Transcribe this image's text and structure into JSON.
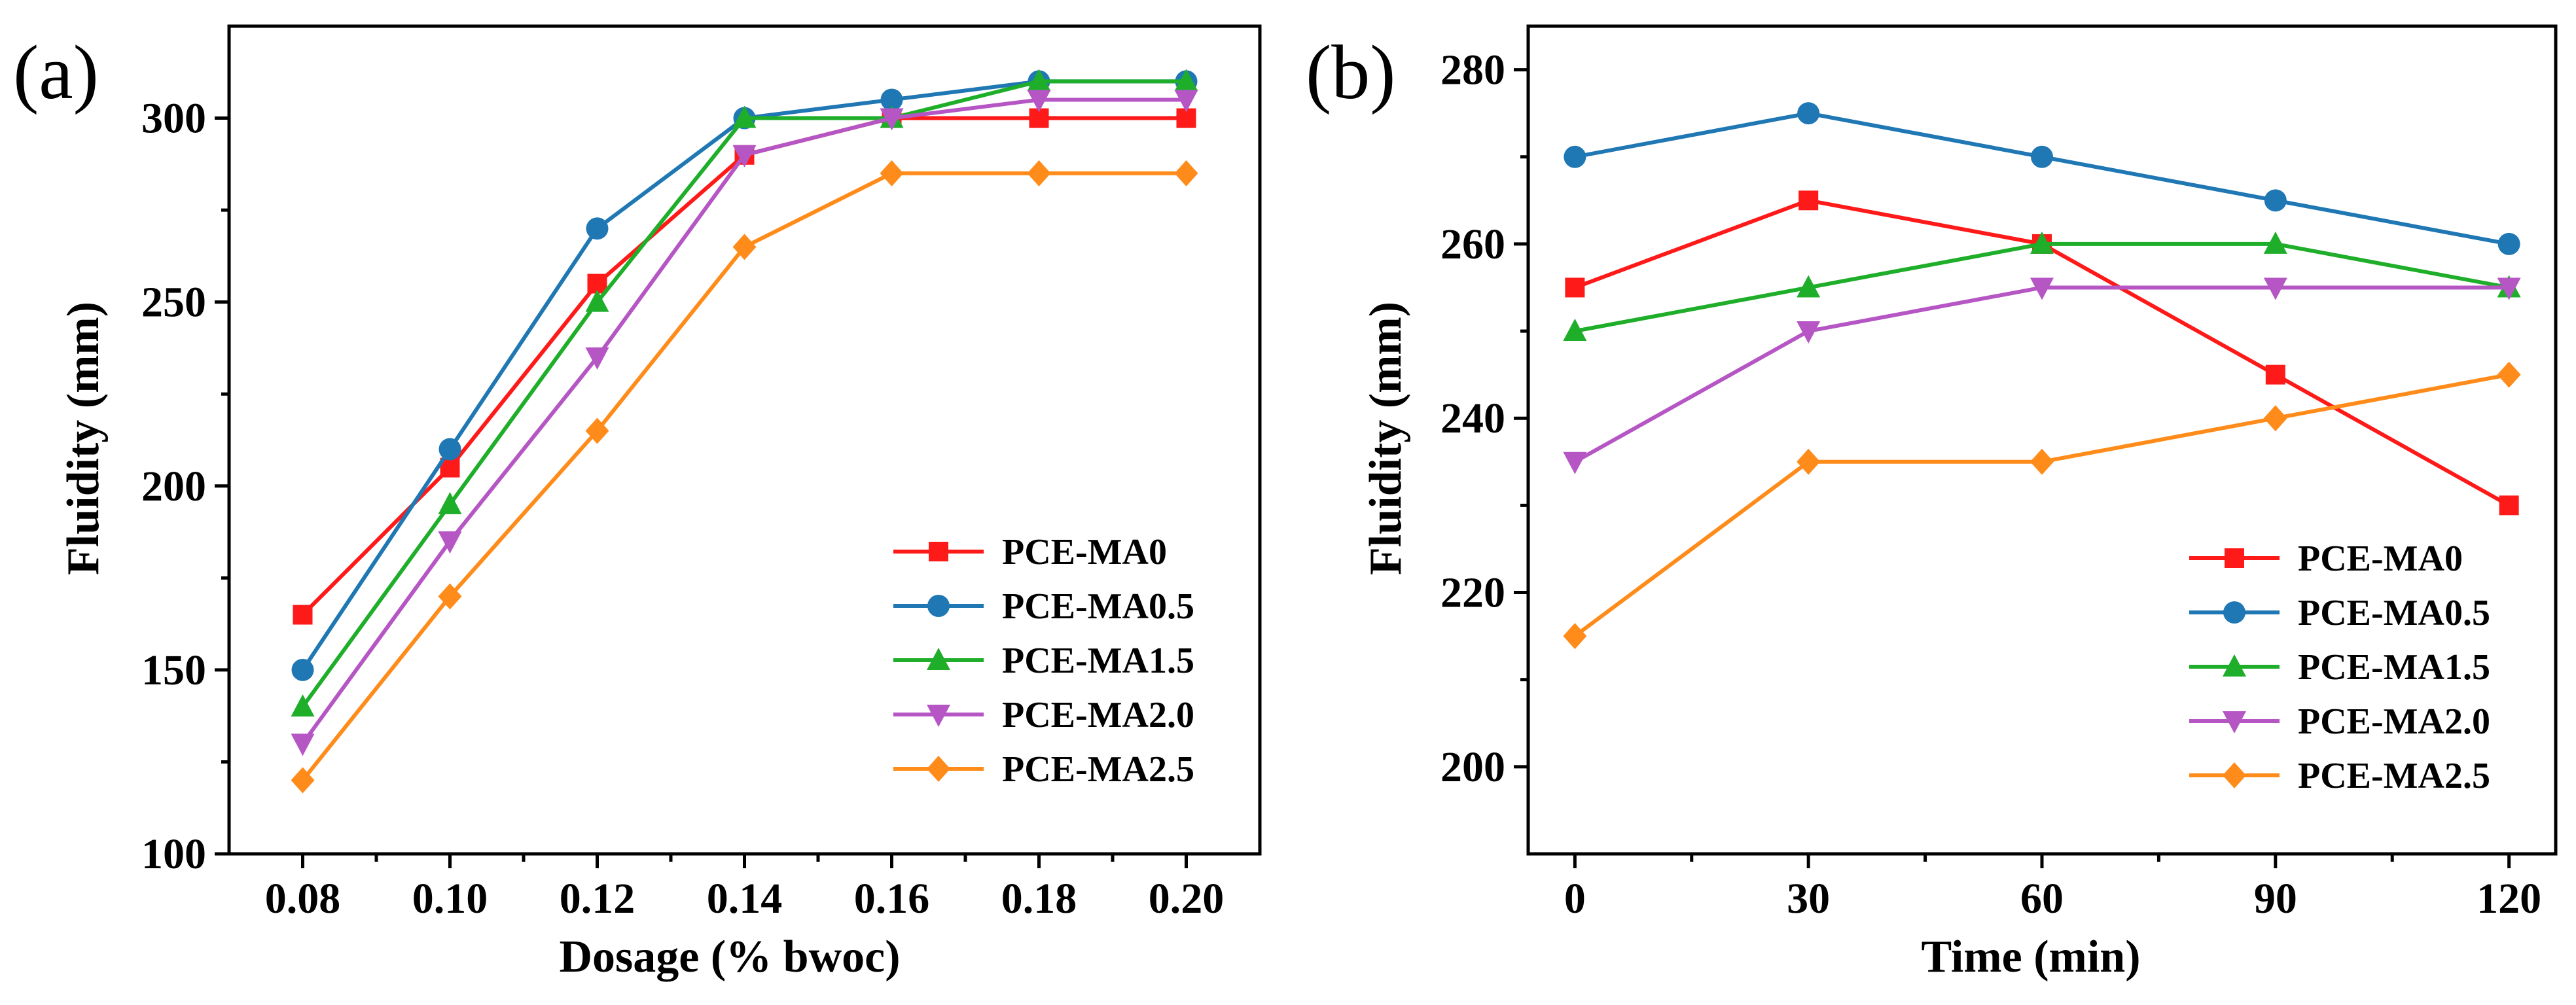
{
  "chart_data": [
    {
      "type": "line",
      "panel_label": "(a)",
      "xlabel": "Dosage (% bwoc)",
      "ylabel": "Fluidity (mm)",
      "x": [
        0.08,
        0.1,
        0.12,
        0.14,
        0.16,
        0.18,
        0.2
      ],
      "x_tick_labels": [
        "0.08",
        "0.10",
        "0.12",
        "0.14",
        "0.16",
        "0.18",
        "0.20"
      ],
      "xlim": [
        0.07,
        0.21
      ],
      "ylim": [
        100,
        325
      ],
      "y_ticks": [
        100,
        150,
        200,
        250,
        300
      ],
      "y_tick_labels": [
        "100",
        "150",
        "200",
        "250",
        "300"
      ],
      "legend_position": "bottom-right",
      "series": [
        {
          "name": "PCE-MA0",
          "color": "#ff1a1a",
          "marker": "square",
          "values": [
            165,
            205,
            255,
            290,
            300,
            300,
            300
          ]
        },
        {
          "name": "PCE-MA0.5",
          "color": "#1f77b4",
          "marker": "circle",
          "values": [
            150,
            210,
            270,
            300,
            305,
            310,
            310
          ]
        },
        {
          "name": "PCE-MA1.5",
          "color": "#1fae2a",
          "marker": "triangle-up",
          "values": [
            140,
            195,
            250,
            300,
            300,
            310,
            310
          ]
        },
        {
          "name": "PCE-MA2.0",
          "color": "#b556c4",
          "marker": "triangle-down",
          "values": [
            130,
            185,
            235,
            290,
            300,
            305,
            305
          ]
        },
        {
          "name": "PCE-MA2.5",
          "color": "#ff8c1a",
          "marker": "diamond",
          "values": [
            120,
            170,
            215,
            265,
            285,
            285,
            285
          ]
        }
      ]
    },
    {
      "type": "line",
      "panel_label": "(b)",
      "xlabel": "Time (min)",
      "ylabel": "Fluidity (mm)",
      "x": [
        0,
        30,
        60,
        90,
        120
      ],
      "x_tick_labels": [
        "0",
        "30",
        "60",
        "90",
        "120"
      ],
      "xlim": [
        -6,
        126
      ],
      "ylim": [
        190,
        285
      ],
      "y_ticks": [
        200,
        220,
        240,
        260,
        280
      ],
      "y_tick_labels": [
        "200",
        "220",
        "240",
        "260",
        "280"
      ],
      "legend_position": "bottom-right",
      "series": [
        {
          "name": "PCE-MA0",
          "color": "#ff1a1a",
          "marker": "square",
          "values": [
            255,
            265,
            260,
            245,
            230
          ]
        },
        {
          "name": "PCE-MA0.5",
          "color": "#1f77b4",
          "marker": "circle",
          "values": [
            270,
            275,
            270,
            265,
            260
          ]
        },
        {
          "name": "PCE-MA1.5",
          "color": "#1fae2a",
          "marker": "triangle-up",
          "values": [
            250,
            255,
            260,
            260,
            255
          ]
        },
        {
          "name": "PCE-MA2.0",
          "color": "#b556c4",
          "marker": "triangle-down",
          "values": [
            235,
            250,
            255,
            255,
            255
          ]
        },
        {
          "name": "PCE-MA2.5",
          "color": "#ff8c1a",
          "marker": "diamond",
          "values": [
            215,
            235,
            235,
            240,
            245
          ]
        }
      ]
    }
  ]
}
